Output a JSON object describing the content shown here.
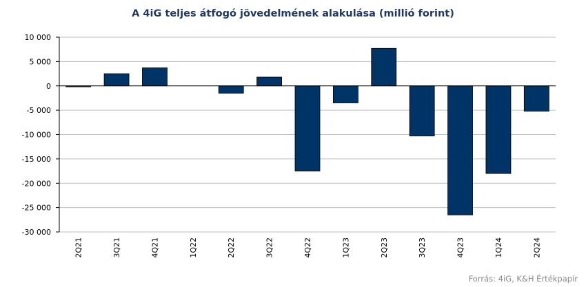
{
  "chart_data": {
    "type": "bar",
    "title": "A 4iG teljes átfogó jövedelmének alakulása (millió forint)",
    "categories": [
      "2Q21",
      "3Q21",
      "4Q21",
      "1Q22",
      "2Q22",
      "3Q22",
      "4Q22",
      "1Q23",
      "2Q23",
      "3Q23",
      "4Q23",
      "1Q24",
      "2Q24"
    ],
    "values": [
      -200,
      2500,
      3700,
      0,
      -1500,
      1800,
      -17500,
      -3500,
      7700,
      -10300,
      -26500,
      -18000,
      -5200
    ],
    "ylim": [
      -30000,
      10000
    ],
    "yticks": [
      10000,
      5000,
      0,
      -5000,
      -10000,
      -15000,
      -20000,
      -25000,
      -30000
    ],
    "ytick_labels": [
      "10 000",
      "5 000",
      "0",
      "-5 000",
      "-10 000",
      "-15 000",
      "-20 000",
      "-25 000",
      "-30 000"
    ],
    "bar_color": "#003366",
    "grid": true,
    "legend": "none"
  },
  "source": "Forrás: 4iG, K&H Értékpapír"
}
